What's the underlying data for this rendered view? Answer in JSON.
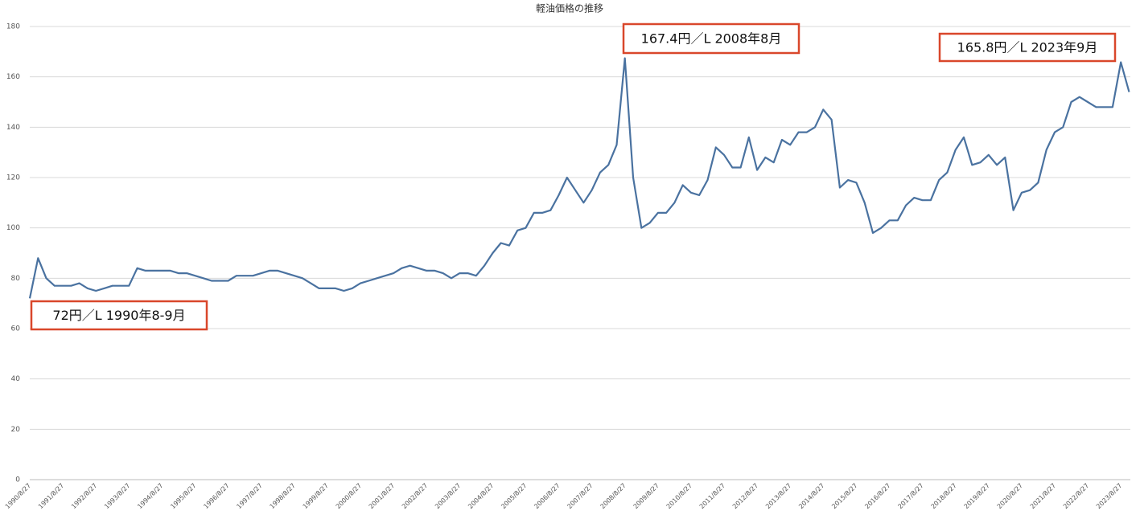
{
  "chart_data": {
    "type": "line",
    "title": "軽油価格の推移",
    "categories": [
      "1990/8/27",
      null,
      null,
      null,
      "1991/8/27",
      null,
      null,
      null,
      "1992/8/27",
      null,
      null,
      null,
      "1993/8/27",
      null,
      null,
      null,
      "1994/8/27",
      null,
      null,
      null,
      "1995/8/27",
      null,
      null,
      null,
      "1996/8/27",
      null,
      null,
      null,
      "1997/8/27",
      null,
      null,
      null,
      "1998/8/27",
      null,
      null,
      null,
      "1999/8/27",
      null,
      null,
      null,
      "2000/8/27",
      null,
      null,
      null,
      "2001/8/27",
      null,
      null,
      null,
      "2002/8/27",
      null,
      null,
      null,
      "2003/8/27",
      null,
      null,
      null,
      "2004/8/27",
      null,
      null,
      null,
      "2005/8/27",
      null,
      null,
      null,
      "2006/8/27",
      null,
      null,
      null,
      "2007/8/27",
      null,
      null,
      null,
      "2008/8/27",
      null,
      null,
      null,
      "2009/8/27",
      null,
      null,
      null,
      "2010/8/27",
      null,
      null,
      null,
      "2011/8/27",
      null,
      null,
      null,
      "2012/8/27",
      null,
      null,
      null,
      "2013/8/27",
      null,
      null,
      null,
      "2014/8/27",
      null,
      null,
      null,
      "2015/8/27",
      null,
      null,
      null,
      "2016/8/27",
      null,
      null,
      null,
      "2017/8/27",
      null,
      null,
      null,
      "2018/8/27",
      null,
      null,
      null,
      "2019/8/27",
      null,
      null,
      null,
      "2020/8/27",
      null,
      null,
      null,
      "2021/8/27",
      null,
      null,
      null,
      "2022/8/27",
      null,
      null,
      null,
      "2023/8/27",
      null
    ],
    "series": [
      {
        "name": "軽油価格",
        "color": "#4a72a0",
        "values": [
          72,
          88,
          80,
          77,
          77,
          77,
          78,
          76,
          75,
          76,
          77,
          77,
          77,
          84,
          83,
          83,
          83,
          83,
          82,
          82,
          81,
          80,
          79,
          79,
          79,
          81,
          81,
          81,
          82,
          83,
          83,
          82,
          81,
          80,
          78,
          76,
          76,
          76,
          75,
          76,
          78,
          79,
          80,
          81,
          82,
          84,
          85,
          84,
          83,
          83,
          82,
          80,
          82,
          82,
          81,
          85,
          90,
          94,
          93,
          99,
          100,
          106,
          106,
          107,
          113,
          120,
          115,
          110,
          115,
          122,
          125,
          133,
          167.4,
          120,
          100,
          102,
          106,
          106,
          110,
          117,
          114,
          113,
          119,
          132,
          129,
          124,
          124,
          136,
          123,
          128,
          126,
          135,
          133,
          138,
          138,
          140,
          147,
          143,
          116,
          119,
          118,
          110,
          98,
          100,
          103,
          103,
          109,
          112,
          111,
          111,
          119,
          122,
          131,
          136,
          125,
          126,
          129,
          125,
          128,
          107,
          114,
          115,
          118,
          131,
          138,
          140,
          150,
          152,
          150,
          148,
          148,
          148,
          165.8,
          154
        ]
      }
    ],
    "ylim": [
      0,
      180
    ],
    "yticks": [
      0,
      20,
      40,
      60,
      80,
      100,
      120,
      140,
      160,
      180
    ],
    "grid": true,
    "annotations": [
      "72円／L 1990年8-9月",
      "167.4円／L 2008年8月",
      "165.8円／L 2023年9月"
    ]
  }
}
